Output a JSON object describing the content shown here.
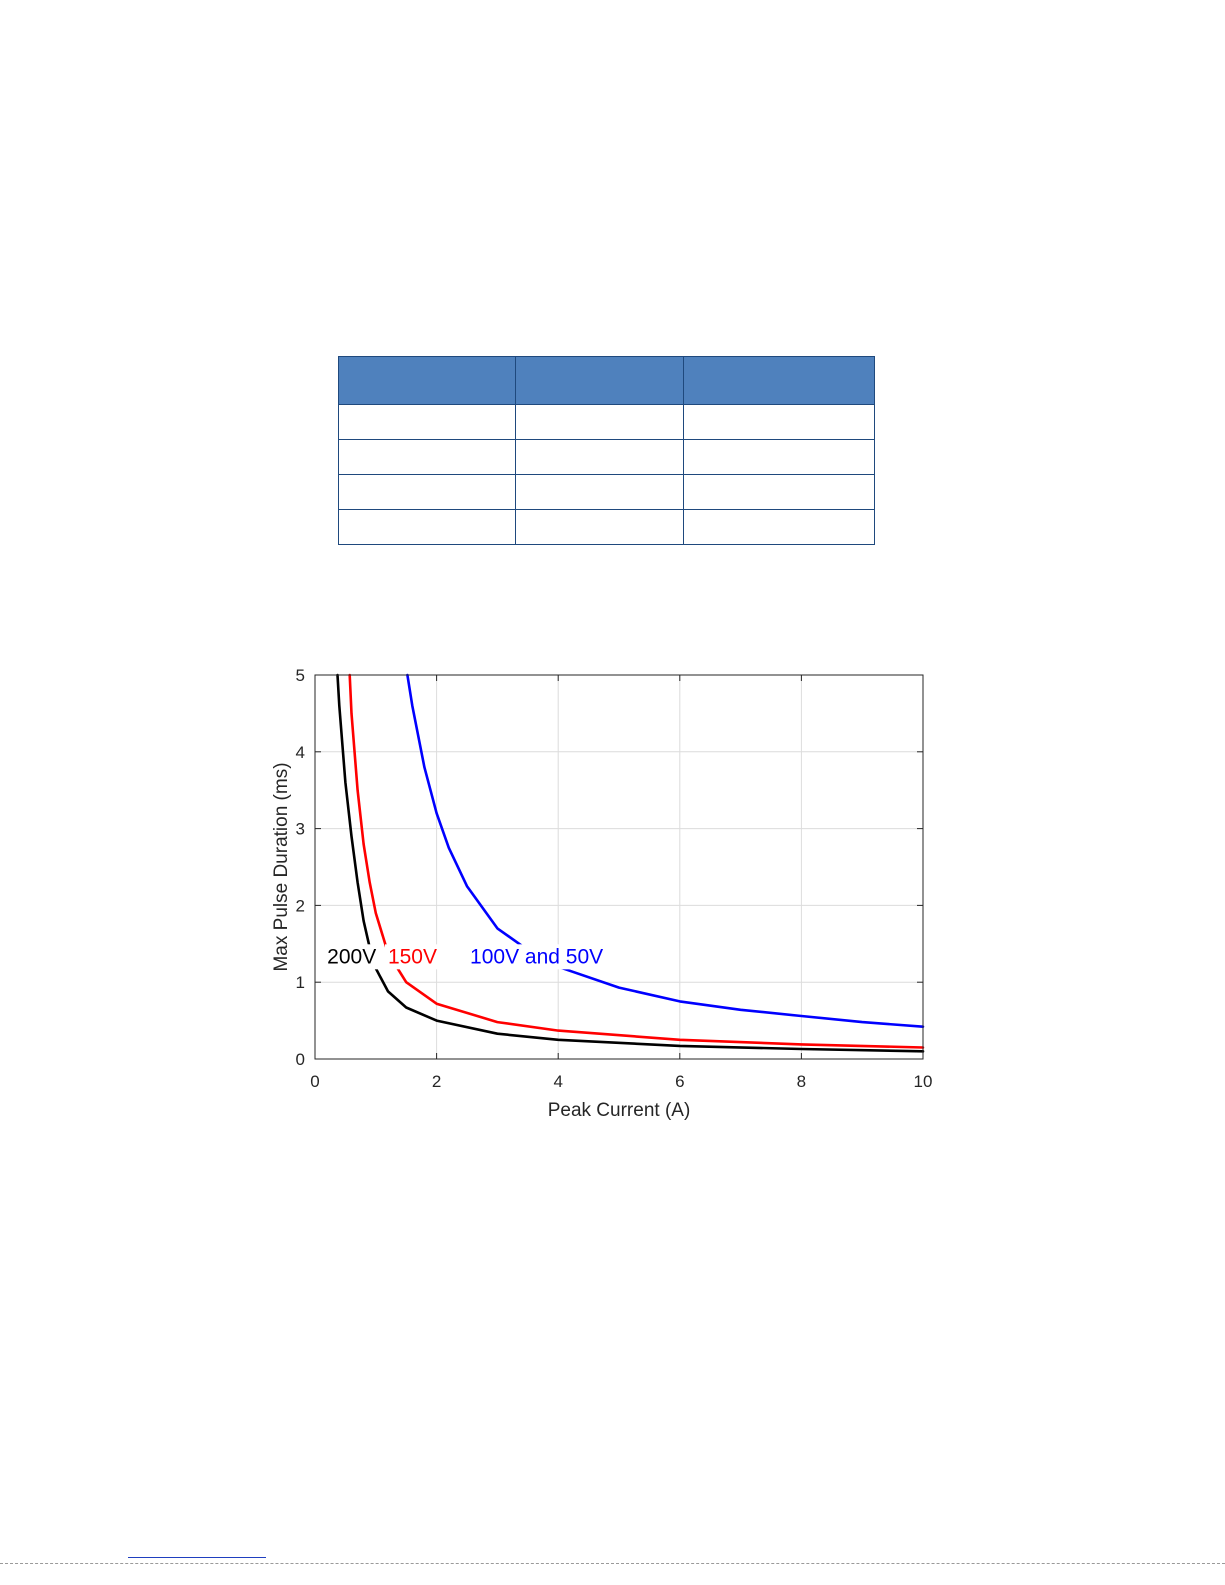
{
  "table": {
    "headers": [
      "",
      "",
      ""
    ],
    "rows": [
      [
        "",
        "",
        ""
      ],
      [
        "",
        "",
        ""
      ],
      [
        "",
        "",
        ""
      ],
      [
        "",
        "",
        ""
      ]
    ]
  },
  "colors": {
    "header_fill": "#4f81bd",
    "table_border": "#1f497d",
    "series_200v": "#000000",
    "series_150v": "#ff0000",
    "series_100v_50v": "#0000ff"
  },
  "chart_data": {
    "type": "line",
    "title": "",
    "xlabel": "Peak Current (A)",
    "ylabel": "Max Pulse Duration (ms)",
    "xlim": [
      0,
      10
    ],
    "ylim": [
      0,
      5
    ],
    "xticks": [
      "0",
      "2",
      "4",
      "6",
      "8",
      "10"
    ],
    "yticks": [
      "0",
      "1",
      "2",
      "3",
      "4",
      "5"
    ],
    "grid": true,
    "series": [
      {
        "name": "200V",
        "color": "#000000",
        "x": [
          0.37,
          0.4,
          0.5,
          0.6,
          0.7,
          0.8,
          0.9,
          1.0,
          1.2,
          1.5,
          2.0,
          3.0,
          4.0,
          6.0,
          8.0,
          10.0
        ],
        "y": [
          5.0,
          4.6,
          3.6,
          2.9,
          2.3,
          1.8,
          1.45,
          1.18,
          0.88,
          0.67,
          0.5,
          0.33,
          0.25,
          0.17,
          0.13,
          0.1
        ]
      },
      {
        "name": "150V",
        "color": "#ff0000",
        "x": [
          0.57,
          0.6,
          0.7,
          0.8,
          0.9,
          1.0,
          1.2,
          1.5,
          2.0,
          3.0,
          4.0,
          6.0,
          8.0,
          10.0
        ],
        "y": [
          5.0,
          4.5,
          3.5,
          2.8,
          2.3,
          1.9,
          1.38,
          1.0,
          0.72,
          0.48,
          0.37,
          0.25,
          0.19,
          0.15
        ]
      },
      {
        "name": "100V and 50V",
        "color": "#0000ff",
        "x": [
          1.52,
          1.6,
          1.8,
          2.0,
          2.2,
          2.5,
          3.0,
          3.5,
          4.0,
          5.0,
          6.0,
          7.0,
          8.0,
          9.0,
          10.0
        ],
        "y": [
          5.0,
          4.6,
          3.8,
          3.2,
          2.75,
          2.25,
          1.7,
          1.42,
          1.2,
          0.93,
          0.75,
          0.64,
          0.56,
          0.48,
          0.42
        ]
      }
    ],
    "annotations": [
      {
        "text": "200V",
        "x": 0.2,
        "y": 1.35,
        "color": "#000000"
      },
      {
        "text": "150V",
        "x": 1.2,
        "y": 1.35,
        "color": "#ff0000"
      },
      {
        "text": "100V and 50V",
        "x": 2.55,
        "y": 1.35,
        "color": "#0000ff"
      }
    ]
  }
}
